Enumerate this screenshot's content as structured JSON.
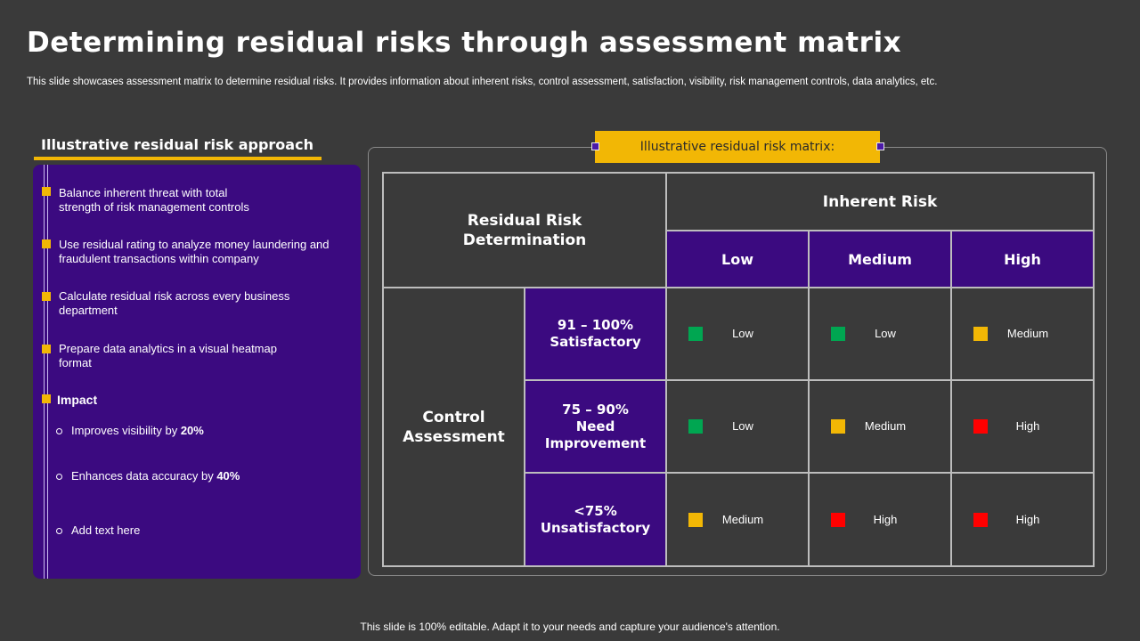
{
  "title": "Determining residual risks through assessment matrix",
  "subtitle": "This slide showcases assessment matrix to determine residual risks. It provides information about inherent risks, control assessment, satisfaction, visibility, risk management controls, data analytics, etc.",
  "left": {
    "heading": "Illustrative residual risk approach",
    "bullets": [
      {
        "line1": "Balance inherent threat with total",
        "line2": "strength of risk management  controls"
      },
      {
        "line1": "Use residual rating to analyze money laundering and",
        "line2": "fraudulent  transactions within company"
      },
      {
        "line1": "Calculate residual risk across every  business",
        "line2": "department"
      },
      {
        "line1": "Prepare  data analytics in a visual  heatmap",
        "line2": "format"
      }
    ],
    "impact_label": "Impact",
    "impacts": [
      {
        "text": "Improves  visibility by ",
        "bold": "20%"
      },
      {
        "text": "Enhances data accuracy by ",
        "bold": "40%"
      },
      {
        "text": "Add text here",
        "bold": ""
      }
    ]
  },
  "matrix": {
    "banner": "Illustrative residual risk matrix:",
    "corner_line1": "Residual Risk",
    "corner_line2": "Determination",
    "inherent_header": "Inherent Risk",
    "levels": [
      "Low",
      "Medium",
      "High"
    ],
    "control_line1": "Control",
    "control_line2": "Assessment",
    "rows": [
      {
        "label": [
          "91 – 100%",
          "Satisfactory"
        ],
        "cells": [
          {
            "text": "Low",
            "color": "#00a651"
          },
          {
            "text": "Low",
            "color": "#00a651"
          },
          {
            "text": "Medium",
            "color": "#f2b705"
          }
        ]
      },
      {
        "label": [
          "75 – 90%",
          "Need",
          "Improvement"
        ],
        "cells": [
          {
            "text": "Low",
            "color": "#00a651"
          },
          {
            "text": "Medium",
            "color": "#f2b705"
          },
          {
            "text": "High",
            "color": "#ff0000"
          }
        ]
      },
      {
        "label": [
          "<75%",
          "Unsatisfactory"
        ],
        "cells": [
          {
            "text": "Medium",
            "color": "#f2b705"
          },
          {
            "text": "High",
            "color": "#ff0000"
          },
          {
            "text": "High",
            "color": "#ff0000"
          }
        ]
      }
    ]
  },
  "footer": "This slide is 100% editable. Adapt it to your needs and capture your audience's attention."
}
